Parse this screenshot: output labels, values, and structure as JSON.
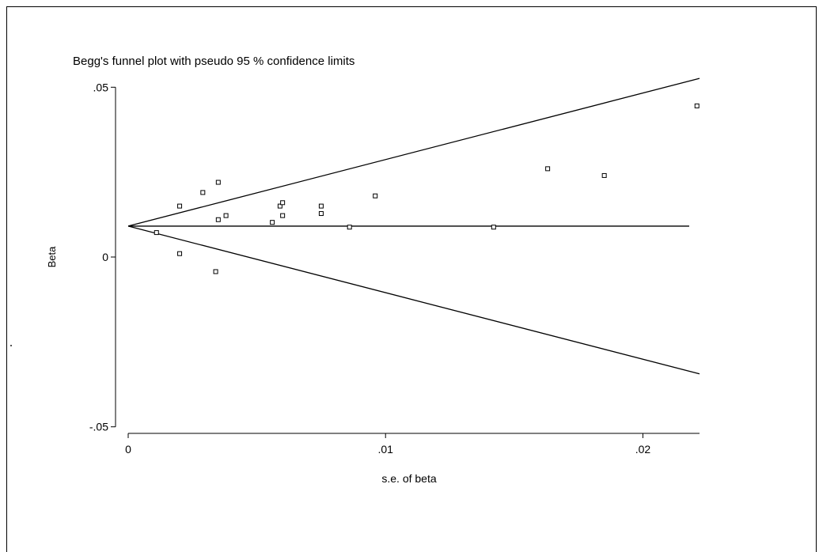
{
  "chart_data": {
    "type": "scatter",
    "title": "Begg's funnel plot with pseudo 95 % confidence limits",
    "xlabel": "s.e. of beta",
    "ylabel": "Beta",
    "xlim": [
      0,
      0.0222
    ],
    "ylim": [
      -0.051,
      0.051
    ],
    "x_ticks": [
      {
        "value": 0,
        "label": "0"
      },
      {
        "value": 0.01,
        "label": ".01"
      },
      {
        "value": 0.02,
        "label": ".02"
      }
    ],
    "y_ticks": [
      {
        "value": -0.05,
        "label": "-.05"
      },
      {
        "value": 0,
        "label": "0"
      },
      {
        "value": 0.05,
        "label": ".05"
      }
    ],
    "pooled_estimate": 0.0091,
    "confidence_z": 1.96,
    "grid": false,
    "legend": "none",
    "points": [
      {
        "x": 0.0011,
        "y": 0.0072
      },
      {
        "x": 0.002,
        "y": 0.015
      },
      {
        "x": 0.002,
        "y": 0.001
      },
      {
        "x": 0.0029,
        "y": 0.019
      },
      {
        "x": 0.0034,
        "y": -0.0043
      },
      {
        "x": 0.0035,
        "y": 0.022
      },
      {
        "x": 0.0035,
        "y": 0.011
      },
      {
        "x": 0.0038,
        "y": 0.0122
      },
      {
        "x": 0.0056,
        "y": 0.0102
      },
      {
        "x": 0.0059,
        "y": 0.015
      },
      {
        "x": 0.006,
        "y": 0.016
      },
      {
        "x": 0.006,
        "y": 0.0122
      },
      {
        "x": 0.0075,
        "y": 0.015
      },
      {
        "x": 0.0075,
        "y": 0.0128
      },
      {
        "x": 0.0086,
        "y": 0.0088
      },
      {
        "x": 0.0096,
        "y": 0.018
      },
      {
        "x": 0.0142,
        "y": 0.0088
      },
      {
        "x": 0.0163,
        "y": 0.026
      },
      {
        "x": 0.0185,
        "y": 0.024
      },
      {
        "x": 0.0221,
        "y": 0.0445
      }
    ]
  }
}
